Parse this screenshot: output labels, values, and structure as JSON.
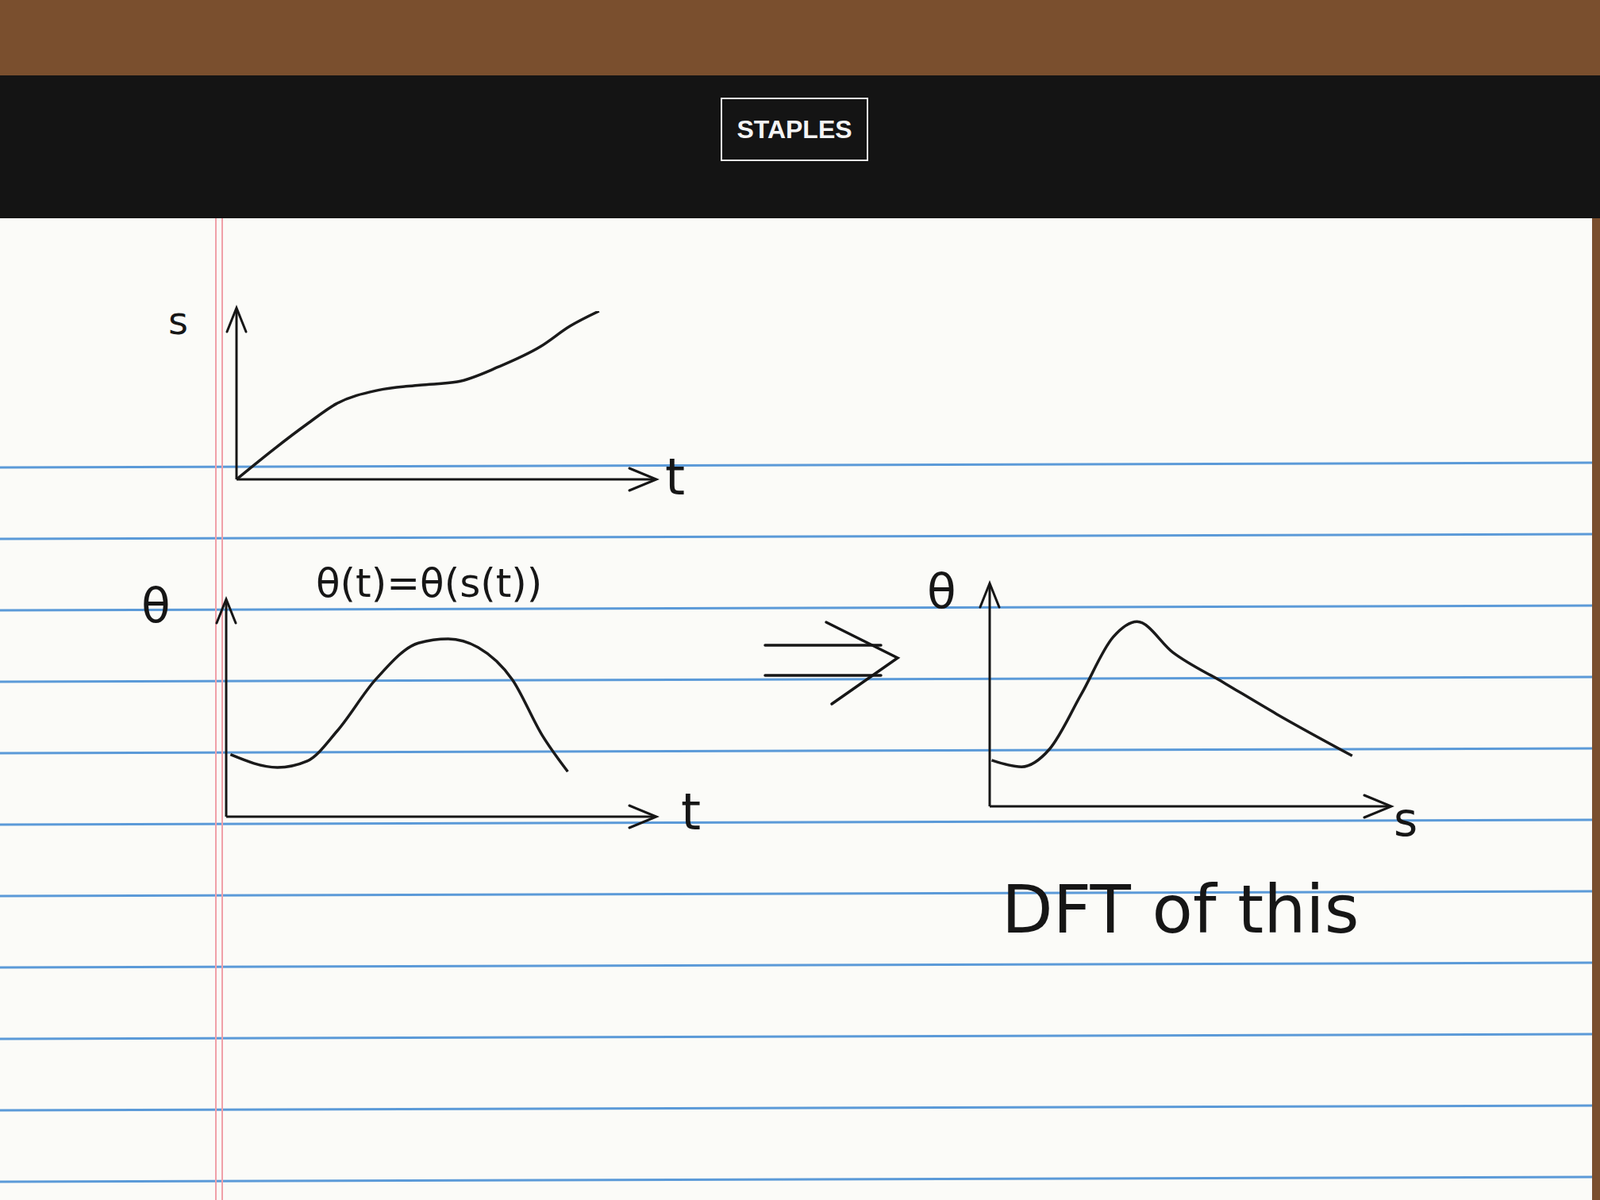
{
  "header": {
    "brand": "STAPLES"
  },
  "chart_data": [
    {
      "type": "line",
      "x_label": "t",
      "y_label": "s",
      "x": [
        0,
        0.9,
        1.7,
        2.4,
        3.4,
        4.4,
        5.3,
        6.3,
        7.3,
        8.0,
        8.7
      ],
      "values": [
        0,
        1.8,
        3.3,
        4.5,
        5.3,
        5.6,
        5.8,
        6.7,
        7.9,
        9.1,
        10.0
      ],
      "xlim": [
        0,
        10
      ],
      "ylim": [
        0,
        10
      ],
      "tick_labels": false,
      "grid": false,
      "color": "#1a1a1a",
      "marker": "none",
      "line_style": "solid"
    },
    {
      "type": "line",
      "title": "θ(t)=θ(s(t))",
      "x_label": "t",
      "y_label": "θ",
      "x": [
        0.1,
        1.2,
        1.9,
        2.6,
        3.5,
        4.5,
        5.2,
        5.9,
        6.7,
        7.4,
        8.0
      ],
      "values": [
        2.9,
        2.3,
        2.6,
        4.0,
        6.4,
        8.1,
        8.3,
        7.9,
        6.4,
        3.8,
        2.1
      ],
      "xlim": [
        0,
        10
      ],
      "ylim": [
        0,
        10
      ],
      "tick_labels": false,
      "grid": false,
      "color": "#1a1a1a",
      "marker": "none",
      "line_style": "solid"
    },
    {
      "type": "line",
      "x_label": "s",
      "y_label": "θ",
      "annotations": [
        "DFT of this"
      ],
      "x": [
        0.05,
        0.8,
        1.5,
        2.3,
        3.1,
        3.7,
        4.6,
        5.9,
        7.2,
        9.1
      ],
      "values": [
        2.1,
        1.8,
        2.6,
        5.1,
        7.7,
        8.4,
        7.0,
        5.6,
        4.2,
        2.3
      ],
      "xlim": [
        0,
        10
      ],
      "ylim": [
        0,
        10
      ],
      "tick_labels": false,
      "grid": false,
      "color": "#1a1a1a",
      "marker": "none",
      "line_style": "solid"
    }
  ]
}
